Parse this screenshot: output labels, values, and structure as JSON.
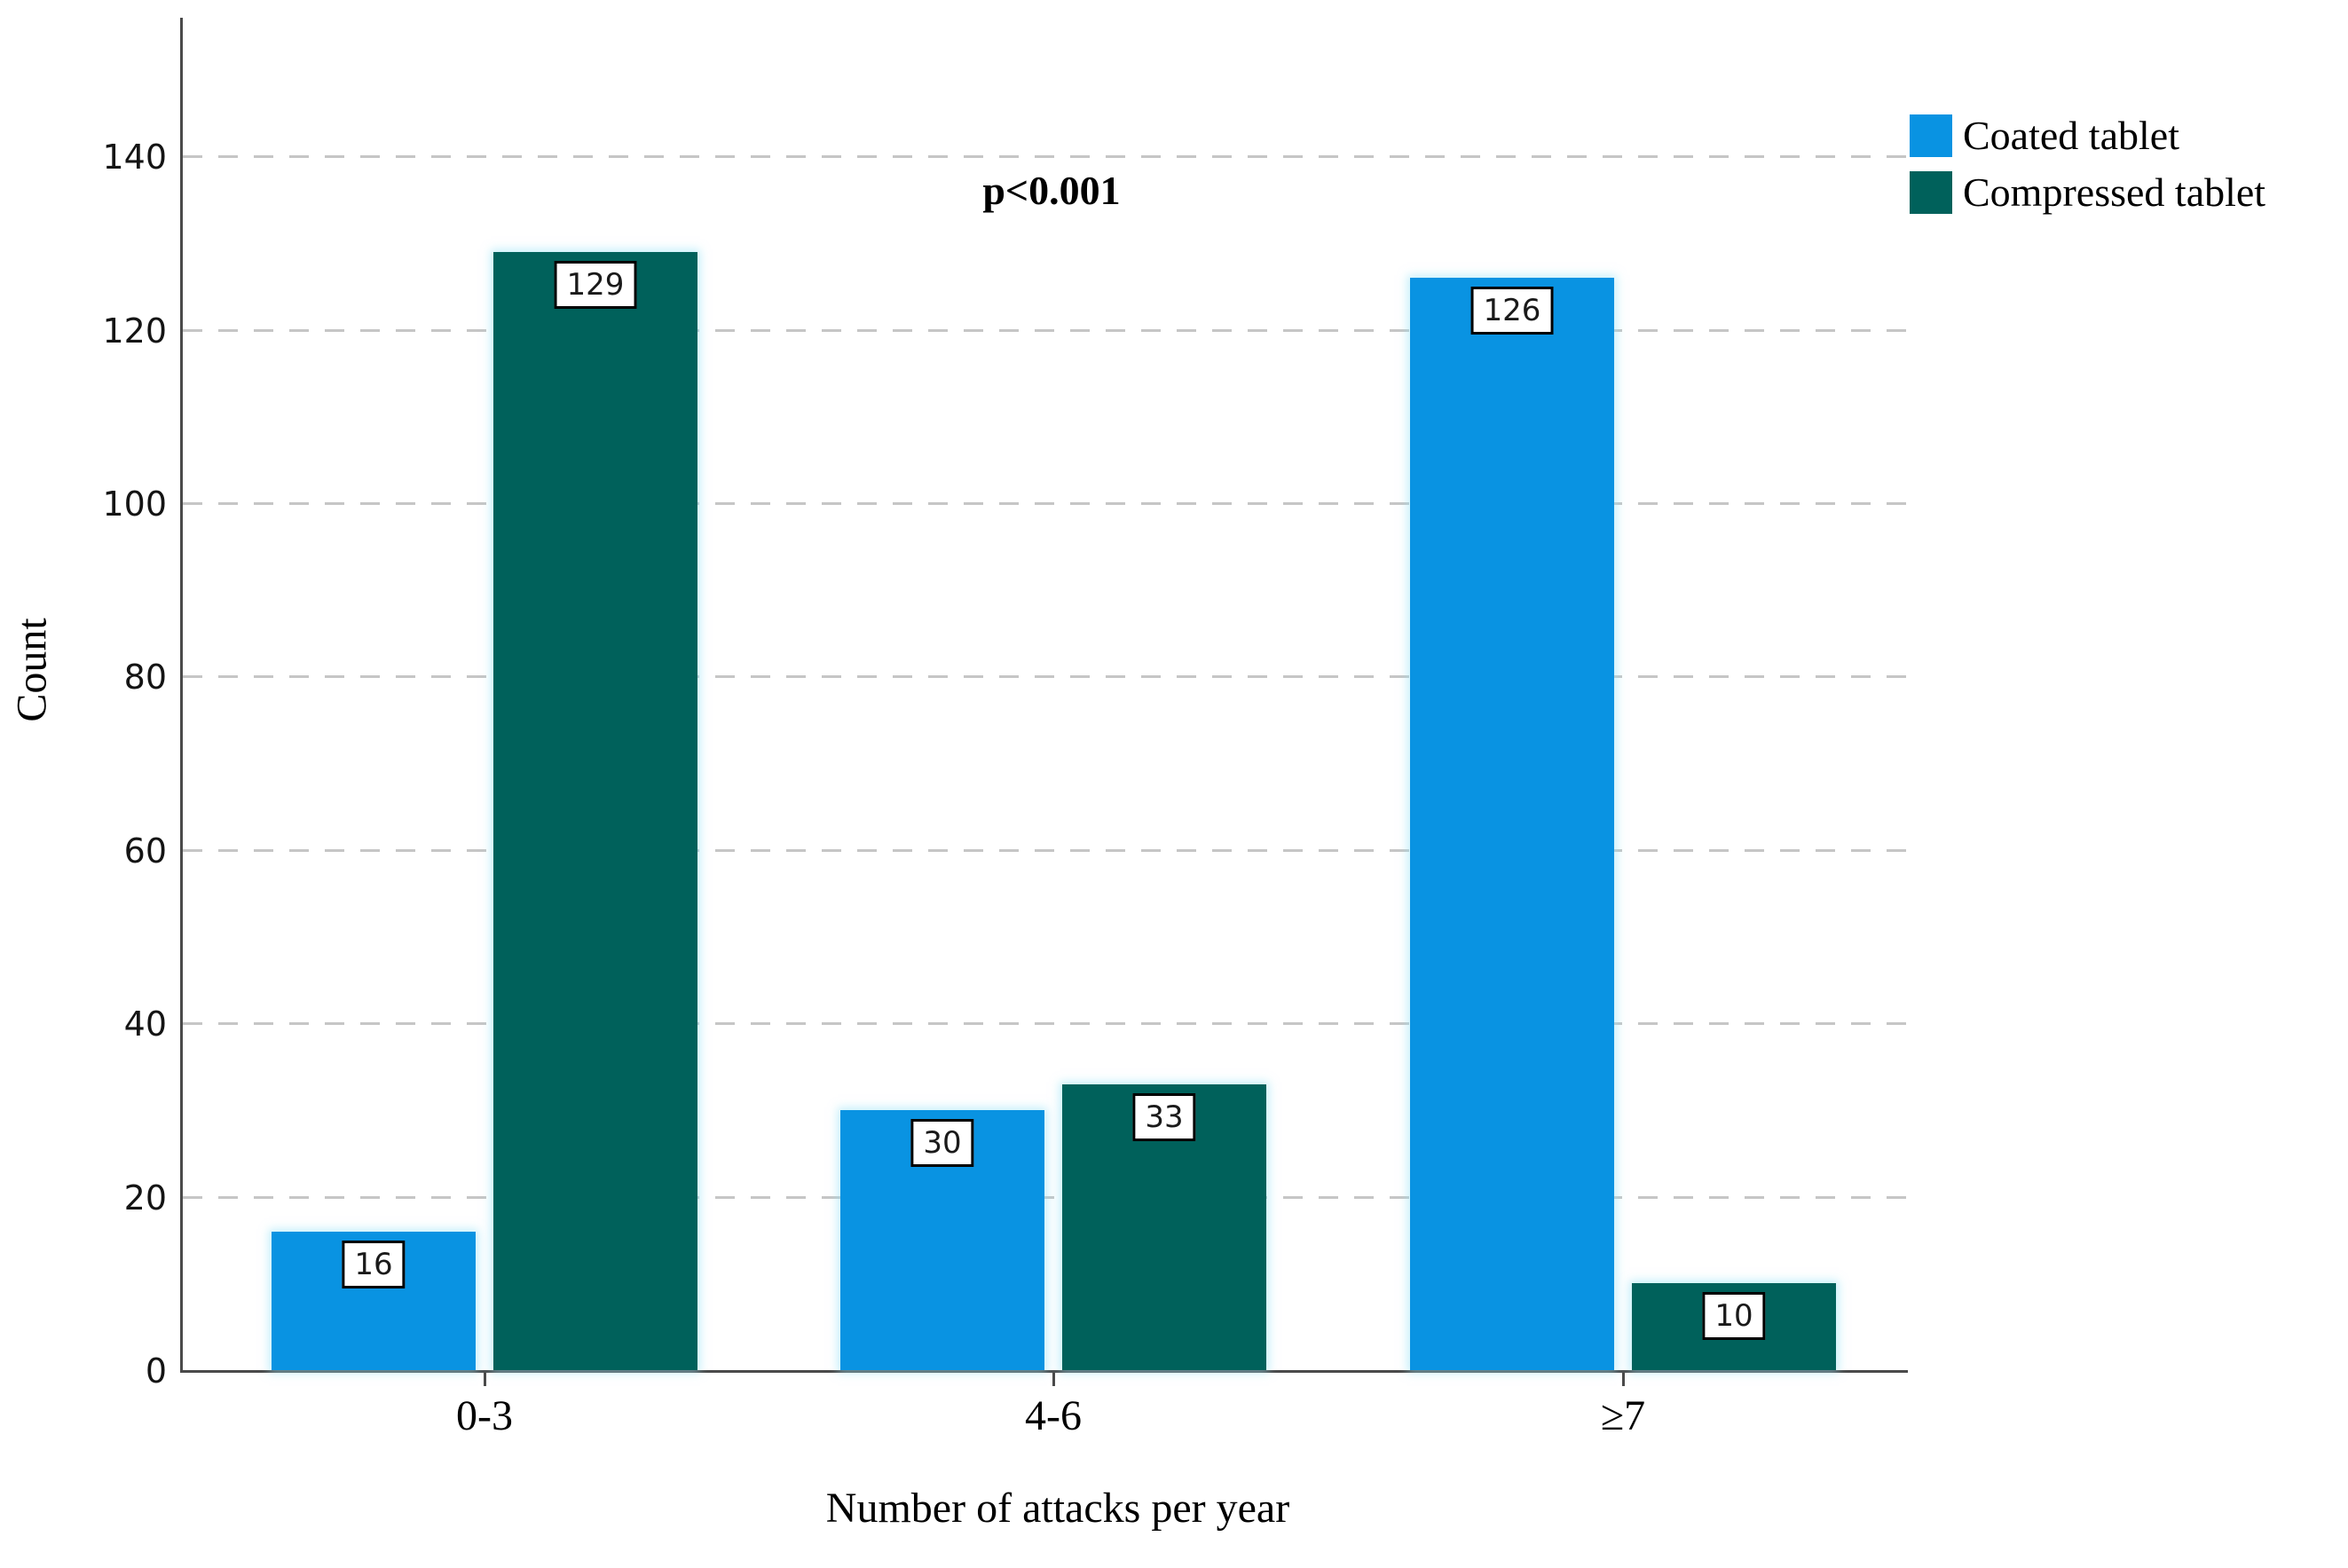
{
  "chart_data": {
    "type": "bar",
    "title": "",
    "annotation": "p<0.001",
    "xlabel": "Number of attacks per year",
    "ylabel": "Count",
    "categories": [
      "0-3",
      "4-6",
      "≥7"
    ],
    "series": [
      {
        "name": "Coated tablet",
        "color": "#0993E2",
        "values": [
          16,
          30,
          126
        ]
      },
      {
        "name": "Compressed tablet",
        "color": "#00615B",
        "values": [
          129,
          33,
          10
        ]
      }
    ],
    "y_ticks": [
      0,
      20,
      40,
      60,
      80,
      100,
      120,
      140
    ],
    "ylim": [
      0,
      156
    ],
    "grid": "horizontal-dashed",
    "legend_position": "top-right",
    "bar_value_labels": true,
    "colors": {
      "axis": "#4a4a4a",
      "gridline": "#c6c6c6",
      "label_box_border": "#000000",
      "label_box_bg": "#ffffff"
    }
  }
}
